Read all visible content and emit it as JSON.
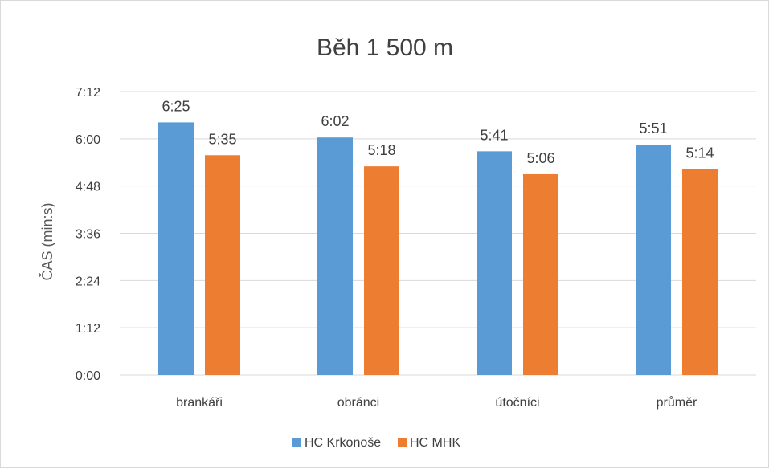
{
  "chart_data": {
    "type": "bar",
    "title": "Běh 1 500 m",
    "ylabel": "ČAS (min:s)",
    "xlabel": "",
    "categories": [
      "brankáři",
      "obránci",
      "útočníci",
      "průměr"
    ],
    "series": [
      {
        "name": "HC Krkonoše",
        "color": "#5b9bd5",
        "values": [
          "6:25",
          "6:02",
          "5:41",
          "5:51"
        ]
      },
      {
        "name": "HC MHK",
        "color": "#ed7d31",
        "values": [
          "5:35",
          "5:18",
          "5:06",
          "5:14"
        ]
      }
    ],
    "y_ticks": [
      "0:00",
      "1:12",
      "2:24",
      "3:36",
      "4:48",
      "6:00",
      "7:12"
    ],
    "ylim": [
      "0:00",
      "7:12"
    ],
    "grid": true,
    "legend": "bottom"
  }
}
